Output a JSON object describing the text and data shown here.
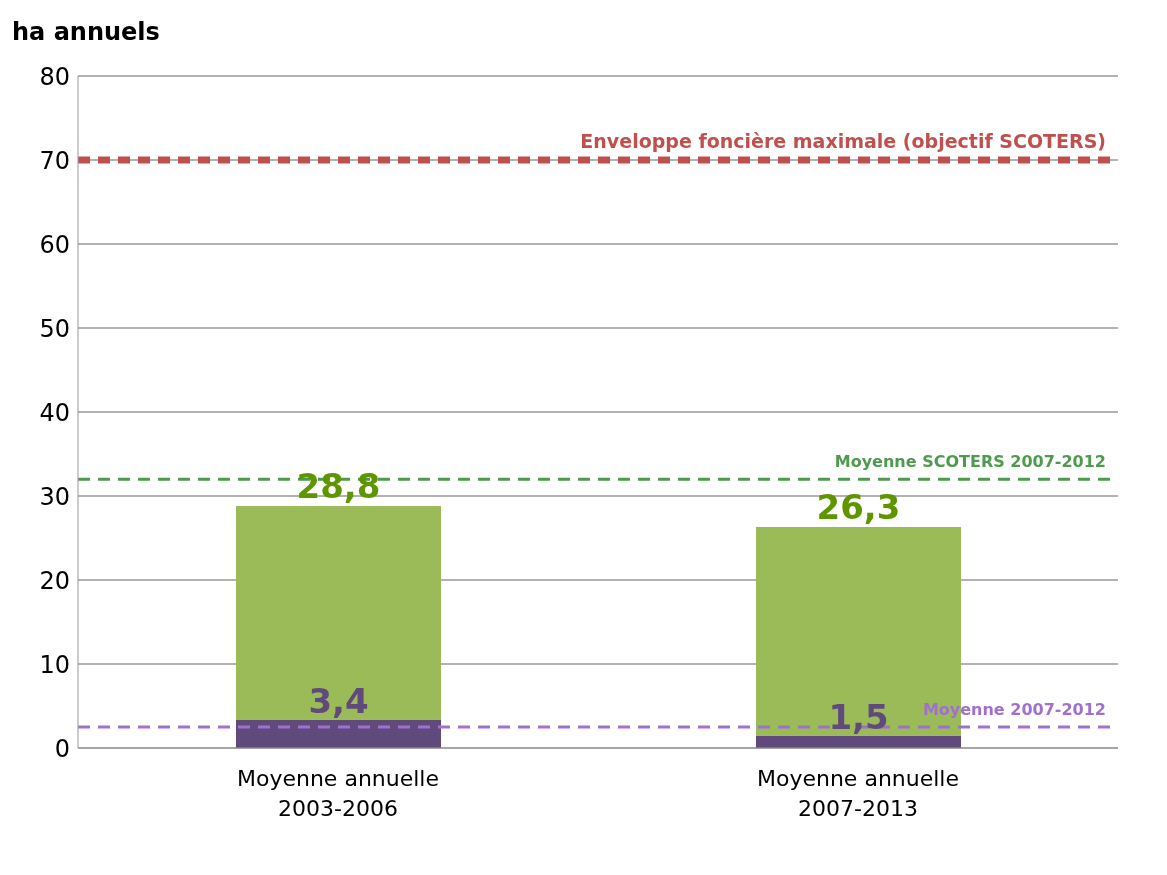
{
  "chart_data": {
    "type": "bar",
    "ylabel": "ha annuels",
    "categories": [
      "Moyenne annuelle 2003-2006",
      "Moyenne annuelle 2007-2013"
    ],
    "series": [
      {
        "color": "#604a7b",
        "values": [
          3.4,
          1.5
        ],
        "value_labels": [
          "3,4",
          "1,5"
        ]
      },
      {
        "color": "#9bbb59",
        "values": [
          25.4,
          24.8
        ]
      }
    ],
    "stacked": true,
    "totals": [
      "28,8",
      "26,3"
    ],
    "ylim": [
      0,
      80
    ],
    "yticks": [
      0,
      10,
      20,
      30,
      40,
      50,
      60,
      70,
      80
    ],
    "grid": "y",
    "ref_lines": [
      {
        "axis": "y",
        "value": 70,
        "label": "Enveloppe foncière maximale (objectif SCOTERS)",
        "color": "#c0504d",
        "line_style": "dashed"
      },
      {
        "axis": "y",
        "value": 32,
        "label": "Moyenne SCOTERS 2007-2012",
        "color": "#4e9a4e",
        "line_style": "dashed"
      },
      {
        "axis": "y",
        "value": 2.5,
        "label": "Moyenne 2007-2012",
        "color": "#a070d0",
        "line_style": "dashed"
      }
    ]
  }
}
